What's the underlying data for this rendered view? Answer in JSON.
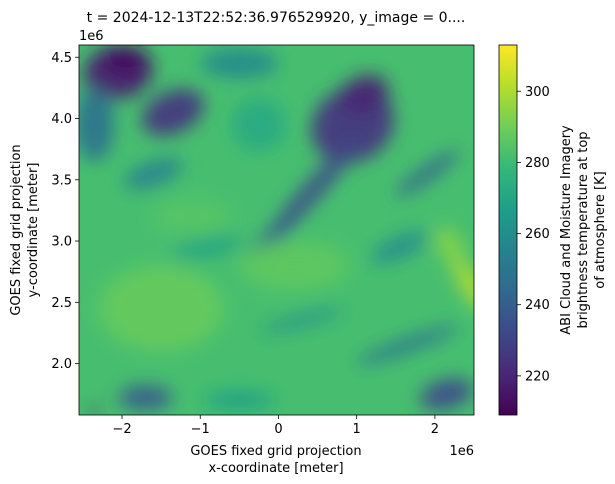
{
  "chart_data": {
    "type": "heatmap",
    "title": "t = 2024-12-13T22:52:36.976529920, y_image = 0....",
    "xlabel_lines": [
      "GOES fixed grid projection",
      "x-coordinate [meter]"
    ],
    "ylabel_lines": [
      "GOES fixed grid projection",
      "y-coordinate [meter]"
    ],
    "x_offset_text": "1e6",
    "y_offset_text": "1e6",
    "xlim": [
      -2.55,
      2.5
    ],
    "ylim": [
      1.58,
      4.6
    ],
    "x_ticks": [
      {
        "value": -2,
        "label": "−2"
      },
      {
        "value": -1,
        "label": "−1"
      },
      {
        "value": 0,
        "label": "0"
      },
      {
        "value": 1,
        "label": "1"
      },
      {
        "value": 2,
        "label": "2"
      }
    ],
    "y_ticks": [
      {
        "value": 2.0,
        "label": "2.0"
      },
      {
        "value": 2.5,
        "label": "2.5"
      },
      {
        "value": 3.0,
        "label": "3.0"
      },
      {
        "value": 3.5,
        "label": "3.5"
      },
      {
        "value": 4.0,
        "label": "4.0"
      },
      {
        "value": 4.5,
        "label": "4.5"
      }
    ],
    "colorbar": {
      "label_lines": [
        "ABI Cloud and Moisture Imagery",
        "brightness temperature at top",
        "of atmosphere [K]"
      ],
      "range": [
        209,
        313
      ],
      "ticks": [
        {
          "value": 220,
          "label": "220"
        },
        {
          "value": 240,
          "label": "240"
        },
        {
          "value": 260,
          "label": "260"
        },
        {
          "value": 280,
          "label": "280"
        },
        {
          "value": 300,
          "label": "300"
        }
      ],
      "colormap": "viridis",
      "colors": [
        "#440154",
        "#482878",
        "#3e4989",
        "#31688e",
        "#26828e",
        "#1f9e89",
        "#35b779",
        "#6ece58",
        "#b5de2b",
        "#fde725"
      ]
    },
    "background_value_K": 282,
    "cloud_features": [
      {
        "name": "northwest cold cloud mass",
        "cx": -2.05,
        "cy": 4.38,
        "rx": 0.45,
        "ry": 0.22,
        "rot": -10,
        "value": 218
      },
      {
        "name": "northwest cold cloud core",
        "cx": -1.95,
        "cy": 4.48,
        "rx": 0.28,
        "ry": 0.12,
        "rot": 0,
        "value": 213
      },
      {
        "name": "central-west cloud band",
        "cx": -1.35,
        "cy": 4.05,
        "rx": 0.42,
        "ry": 0.17,
        "rot": -25,
        "value": 225
      },
      {
        "name": "northeast cold cloud mass",
        "cx": 0.95,
        "cy": 3.95,
        "rx": 0.55,
        "ry": 0.3,
        "rot": -30,
        "value": 225
      },
      {
        "name": "northeast cloud core",
        "cx": 1.1,
        "cy": 4.2,
        "rx": 0.32,
        "ry": 0.15,
        "rot": -20,
        "value": 219
      },
      {
        "name": "frontal cloud band",
        "cx": 0.45,
        "cy": 3.42,
        "rx": 0.85,
        "ry": 0.08,
        "rot": -48,
        "value": 233
      },
      {
        "name": "frontal band tail",
        "cx": -0.05,
        "cy": 3.05,
        "rx": 0.45,
        "ry": 0.06,
        "rot": -40,
        "value": 238
      },
      {
        "name": "eastern cloud streak",
        "cx": 1.9,
        "cy": 3.55,
        "rx": 0.5,
        "ry": 0.06,
        "rot": -35,
        "value": 242
      },
      {
        "name": "northwest mid cloud",
        "cx": -2.35,
        "cy": 3.95,
        "rx": 0.25,
        "ry": 0.3,
        "rot": 0,
        "value": 248
      },
      {
        "name": "western mid cloud",
        "cx": -1.6,
        "cy": 3.55,
        "rx": 0.4,
        "ry": 0.1,
        "rot": -20,
        "value": 255
      },
      {
        "name": "north-central cloud",
        "cx": -0.5,
        "cy": 4.45,
        "rx": 0.5,
        "ry": 0.12,
        "rot": 0,
        "value": 258
      },
      {
        "name": "east-central cloud",
        "cx": 1.55,
        "cy": 2.95,
        "rx": 0.4,
        "ry": 0.09,
        "rot": -25,
        "value": 260
      },
      {
        "name": "southern cloud streak",
        "cx": 0.3,
        "cy": 2.35,
        "rx": 0.55,
        "ry": 0.05,
        "rot": -15,
        "value": 262
      },
      {
        "name": "southeast cloud streak",
        "cx": 1.65,
        "cy": 2.15,
        "rx": 0.7,
        "ry": 0.06,
        "rot": -20,
        "value": 250
      },
      {
        "name": "southeast cold patch",
        "cx": 2.15,
        "cy": 1.75,
        "rx": 0.35,
        "ry": 0.12,
        "rot": -15,
        "value": 232
      },
      {
        "name": "southwest cloud patch",
        "cx": -1.7,
        "cy": 1.72,
        "rx": 0.35,
        "ry": 0.1,
        "rot": 0,
        "value": 238
      },
      {
        "name": "southwest cold spot",
        "cx": -2.35,
        "cy": 1.62,
        "rx": 0.05,
        "ry": 0.04,
        "rot": 0,
        "value": 213
      },
      {
        "name": "south-central cloud",
        "cx": -0.5,
        "cy": 1.7,
        "rx": 0.45,
        "ry": 0.08,
        "rot": 0,
        "value": 268
      },
      {
        "name": "eastern warm patch",
        "cx": 2.45,
        "cy": 2.65,
        "rx": 0.12,
        "ry": 0.25,
        "rot": -30,
        "value": 302
      },
      {
        "name": "eastern warm edge",
        "cx": 2.2,
        "cy": 2.95,
        "rx": 0.15,
        "ry": 0.18,
        "rot": -30,
        "value": 294
      },
      {
        "name": "southwest warm region",
        "cx": -1.5,
        "cy": 2.45,
        "rx": 0.8,
        "ry": 0.35,
        "rot": 0,
        "value": 288
      },
      {
        "name": "central warm region",
        "cx": 0.2,
        "cy": 2.8,
        "rx": 0.7,
        "ry": 0.2,
        "rot": 0,
        "value": 287
      },
      {
        "name": "west-central warm",
        "cx": -1.1,
        "cy": 3.2,
        "rx": 0.5,
        "ry": 0.15,
        "rot": 0,
        "value": 285
      },
      {
        "name": "north-central mid",
        "cx": -0.25,
        "cy": 3.95,
        "rx": 0.35,
        "ry": 0.22,
        "rot": 0,
        "value": 272
      },
      {
        "name": "central-west light cloud",
        "cx": -0.9,
        "cy": 2.95,
        "rx": 0.45,
        "ry": 0.07,
        "rot": -10,
        "value": 268
      }
    ]
  }
}
